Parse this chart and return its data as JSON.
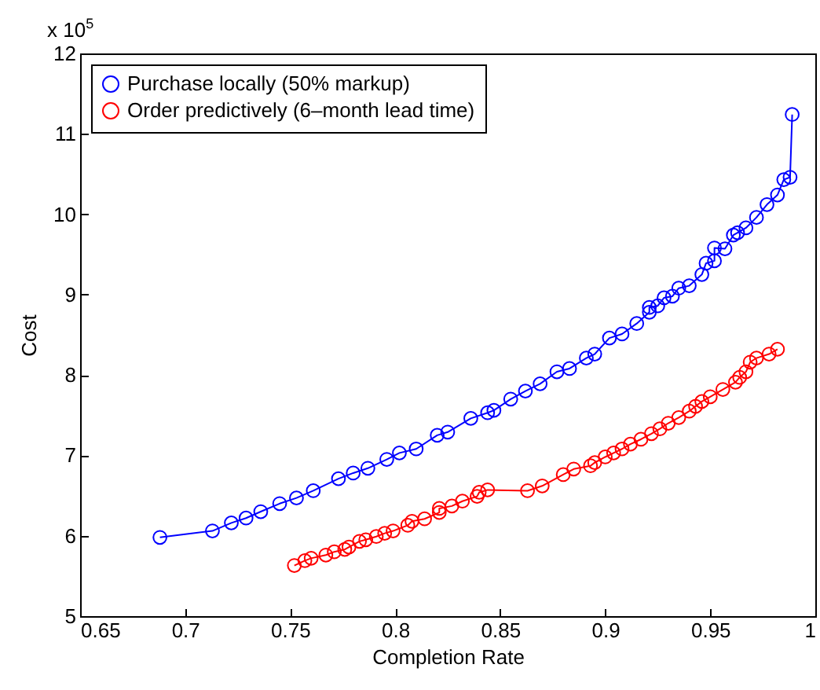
{
  "chart_data": {
    "type": "line",
    "xlabel": "Completion Rate",
    "ylabel": "Cost",
    "annotations": [
      "x 10$^{5}$"
    ],
    "xlim": [
      0.65,
      1
    ],
    "xticks": [
      0.65,
      0.7,
      0.75,
      0.8,
      0.85,
      0.9,
      0.95,
      1
    ],
    "ylim": [
      5,
      12
    ],
    "yticks": [
      5,
      6,
      7,
      8,
      9,
      10,
      11,
      12
    ],
    "grid": false,
    "legend": "top left",
    "marker": "circle",
    "line_style": "solid",
    "series": [
      {
        "name": "Purchase locally (50% markup)",
        "color": "#0000ff",
        "x": [
          0.688,
          0.713,
          0.722,
          0.729,
          0.736,
          0.745,
          0.753,
          0.761,
          0.773,
          0.78,
          0.787,
          0.796,
          0.802,
          0.81,
          0.82,
          0.825,
          0.836,
          0.844,
          0.847,
          0.855,
          0.862,
          0.869,
          0.877,
          0.883,
          0.891,
          0.895,
          0.902,
          0.908,
          0.915,
          0.921,
          0.921,
          0.925,
          0.928,
          0.932,
          0.935,
          0.94,
          0.946,
          0.948,
          0.952,
          0.952,
          0.957,
          0.961,
          0.963,
          0.967,
          0.972,
          0.977,
          0.982,
          0.985,
          0.988,
          0.989
        ],
        "values": [
          5.98,
          6.06,
          6.16,
          6.22,
          6.3,
          6.4,
          6.47,
          6.56,
          6.71,
          6.78,
          6.84,
          6.95,
          7.03,
          7.08,
          7.25,
          7.29,
          7.46,
          7.53,
          7.56,
          7.7,
          7.8,
          7.89,
          8.04,
          8.08,
          8.21,
          8.26,
          8.46,
          8.51,
          8.64,
          8.78,
          8.84,
          8.86,
          8.96,
          8.98,
          9.08,
          9.11,
          9.25,
          9.39,
          9.42,
          9.58,
          9.57,
          9.74,
          9.77,
          9.83,
          9.96,
          10.12,
          10.24,
          10.43,
          10.46,
          11.24
        ]
      },
      {
        "name": "Order predictively (6–month lead time)",
        "color": "#ff0000",
        "x": [
          0.752,
          0.757,
          0.76,
          0.767,
          0.771,
          0.776,
          0.778,
          0.783,
          0.786,
          0.791,
          0.795,
          0.799,
          0.806,
          0.808,
          0.814,
          0.821,
          0.821,
          0.827,
          0.832,
          0.839,
          0.84,
          0.844,
          0.863,
          0.87,
          0.88,
          0.885,
          0.893,
          0.895,
          0.9,
          0.904,
          0.908,
          0.912,
          0.917,
          0.922,
          0.926,
          0.93,
          0.935,
          0.94,
          0.943,
          0.946,
          0.95,
          0.956,
          0.962,
          0.964,
          0.967,
          0.969,
          0.972,
          0.978,
          0.982
        ],
        "values": [
          5.63,
          5.69,
          5.72,
          5.76,
          5.8,
          5.83,
          5.86,
          5.93,
          5.95,
          5.99,
          6.03,
          6.06,
          6.13,
          6.18,
          6.21,
          6.29,
          6.34,
          6.37,
          6.43,
          6.49,
          6.54,
          6.57,
          6.56,
          6.62,
          6.76,
          6.83,
          6.87,
          6.91,
          6.98,
          7.03,
          7.08,
          7.14,
          7.2,
          7.27,
          7.33,
          7.4,
          7.47,
          7.55,
          7.61,
          7.67,
          7.73,
          7.82,
          7.91,
          7.97,
          8.04,
          8.16,
          8.21,
          8.26,
          8.32
        ]
      }
    ]
  }
}
